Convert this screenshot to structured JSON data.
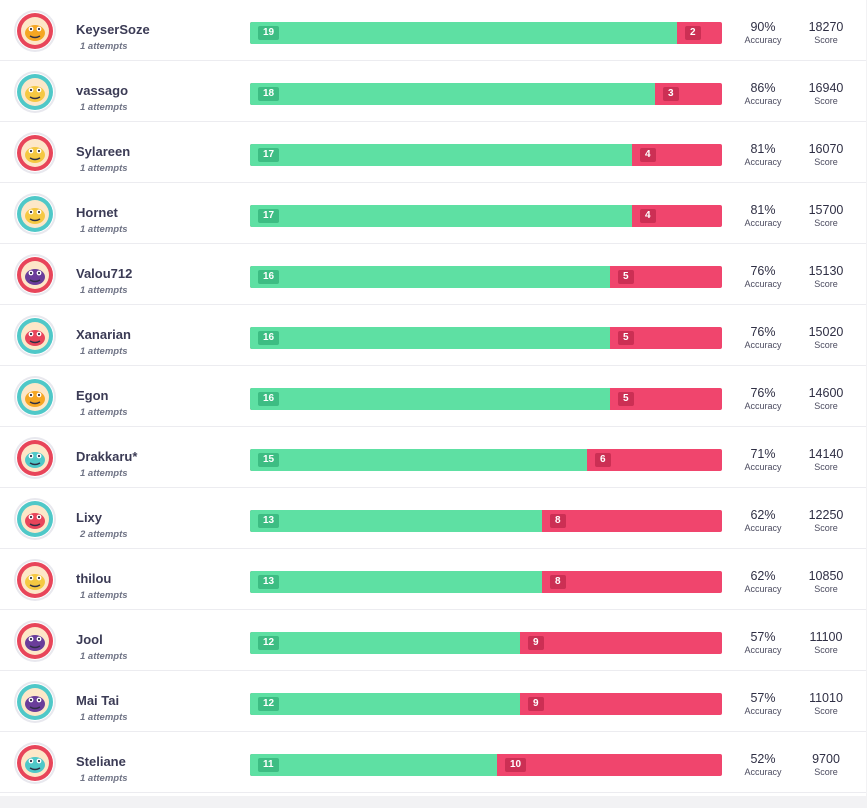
{
  "labels": {
    "accuracy": "Accuracy",
    "score": "Score"
  },
  "colors": {
    "correct": "#5ee0a3",
    "wrong": "#f0456d",
    "correct_badge": "#3dbd83",
    "wrong_badge": "#cc2f54"
  },
  "players": [
    {
      "name": "KeyserSoze",
      "attempts": "1 attempts",
      "correct": 19,
      "wrong": 2,
      "correct_label": "19",
      "wrong_label": "2",
      "accuracy": "90%",
      "score": "18270",
      "avatar_icon": "pizza-slice-avatar-icon",
      "avatar_bg": "#e8455a",
      "avatar_fg": "#f5a623"
    },
    {
      "name": "vassago",
      "attempts": "1 attempts",
      "correct": 18,
      "wrong": 3,
      "correct_label": "18",
      "wrong_label": "3",
      "accuracy": "86%",
      "score": "16940",
      "avatar_icon": "chameleon-avatar-icon",
      "avatar_bg": "#4fc8c8",
      "avatar_fg": "#f5c842"
    },
    {
      "name": "Sylareen",
      "attempts": "1 attempts",
      "correct": 17,
      "wrong": 4,
      "correct_label": "17",
      "wrong_label": "4",
      "accuracy": "81%",
      "score": "16070",
      "avatar_icon": "racecar-avatar-icon",
      "avatar_bg": "#e8455a",
      "avatar_fg": "#f5c842"
    },
    {
      "name": "Hornet",
      "attempts": "1 attempts",
      "correct": 17,
      "wrong": 4,
      "correct_label": "17",
      "wrong_label": "4",
      "accuracy": "81%",
      "score": "15700",
      "avatar_icon": "rainbow-avatar-icon",
      "avatar_bg": "#4fc8c8",
      "avatar_fg": "#f5c842"
    },
    {
      "name": "Valou712",
      "attempts": "1 attempts",
      "correct": 16,
      "wrong": 5,
      "correct_label": "16",
      "wrong_label": "5",
      "accuracy": "76%",
      "score": "15130",
      "avatar_icon": "mustache-monster-avatar-icon",
      "avatar_bg": "#e8455a",
      "avatar_fg": "#6a3d9a"
    },
    {
      "name": "Xanarian",
      "attempts": "1 attempts",
      "correct": 16,
      "wrong": 5,
      "correct_label": "16",
      "wrong_label": "5",
      "accuracy": "76%",
      "score": "15020",
      "avatar_icon": "sloth-avatar-icon",
      "avatar_bg": "#4fc8c8",
      "avatar_fg": "#e8455a"
    },
    {
      "name": "Egon",
      "attempts": "1 attempts",
      "correct": 16,
      "wrong": 5,
      "correct_label": "16",
      "wrong_label": "5",
      "accuracy": "76%",
      "score": "14600",
      "avatar_icon": "sloth-avatar-icon",
      "avatar_bg": "#4fc8c8",
      "avatar_fg": "#f5a623"
    },
    {
      "name": "Drakkaru*",
      "attempts": "1 attempts",
      "correct": 15,
      "wrong": 6,
      "correct_label": "15",
      "wrong_label": "6",
      "accuracy": "71%",
      "score": "14140",
      "avatar_icon": "dragon-avatar-icon",
      "avatar_bg": "#e8455a",
      "avatar_fg": "#4fc8c8"
    },
    {
      "name": "Lixy",
      "attempts": "2 attempts",
      "correct": 13,
      "wrong": 8,
      "correct_label": "13",
      "wrong_label": "8",
      "accuracy": "62%",
      "score": "12250",
      "avatar_icon": "bird-avatar-icon",
      "avatar_bg": "#4fc8c8",
      "avatar_fg": "#e8455a"
    },
    {
      "name": "thilou",
      "attempts": "1 attempts",
      "correct": 13,
      "wrong": 8,
      "correct_label": "13",
      "wrong_label": "8",
      "accuracy": "62%",
      "score": "10850",
      "avatar_icon": "football-avatar-icon",
      "avatar_bg": "#e8455a",
      "avatar_fg": "#f5c842"
    },
    {
      "name": "Jool",
      "attempts": "1 attempts",
      "correct": 12,
      "wrong": 9,
      "correct_label": "12",
      "wrong_label": "9",
      "accuracy": "57%",
      "score": "11100",
      "avatar_icon": "mustache-monster-avatar-icon",
      "avatar_bg": "#e8455a",
      "avatar_fg": "#6a3d9a"
    },
    {
      "name": "Mai Tai",
      "attempts": "1 attempts",
      "correct": 12,
      "wrong": 9,
      "correct_label": "12",
      "wrong_label": "9",
      "accuracy": "57%",
      "score": "11010",
      "avatar_icon": "mustache-monster-avatar-icon",
      "avatar_bg": "#4fc8c8",
      "avatar_fg": "#6a3d9a"
    },
    {
      "name": "Steliane",
      "attempts": "1 attempts",
      "correct": 11,
      "wrong": 10,
      "correct_label": "11",
      "wrong_label": "10",
      "accuracy": "52%",
      "score": "9700",
      "avatar_icon": "shoe-avatar-icon",
      "avatar_bg": "#e8455a",
      "avatar_fg": "#4fc8c8"
    }
  ]
}
